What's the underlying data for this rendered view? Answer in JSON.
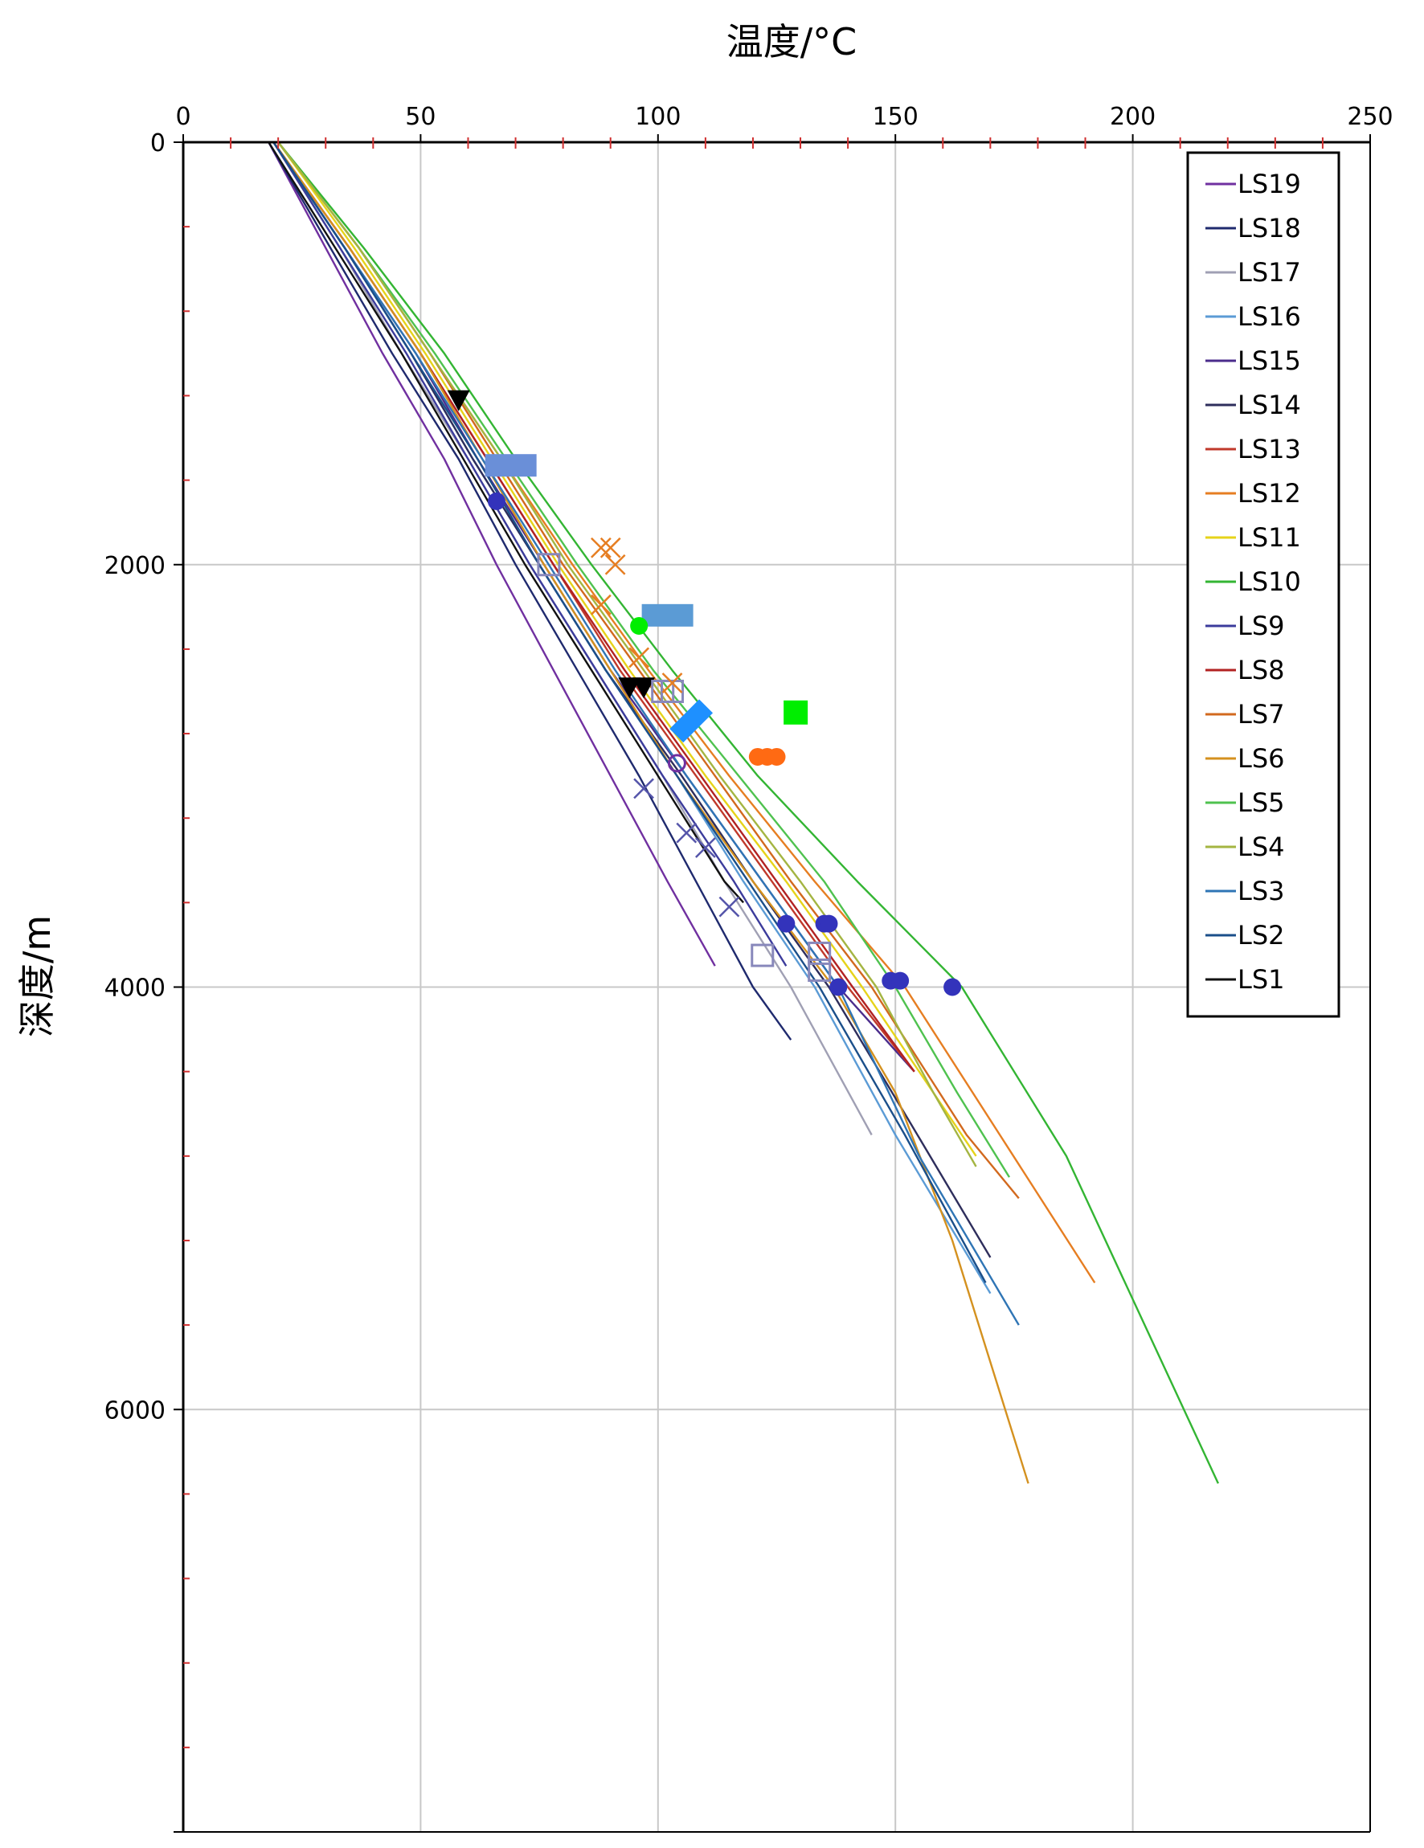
{
  "chart_data": {
    "type": "line",
    "title": "",
    "xlabel": "温度/°C",
    "ylabel": "深度/m",
    "xlim": [
      0,
      250
    ],
    "ylim": [
      0,
      8000
    ],
    "x_ticks": [
      "0",
      "50",
      "100",
      "150",
      "200",
      "250"
    ],
    "y_ticks": [
      "0",
      "2000",
      "4000",
      "6000"
    ],
    "grid": true,
    "legend_position": "top-right",
    "series": [
      {
        "name": "LS19",
        "color": "#7030a0",
        "points": [
          [
            18,
            0
          ],
          [
            30,
            500
          ],
          [
            42,
            1000
          ],
          [
            55,
            1500
          ],
          [
            66,
            2000
          ],
          [
            78,
            2500
          ],
          [
            90,
            3000
          ],
          [
            102,
            3500
          ],
          [
            112,
            3900
          ]
        ]
      },
      {
        "name": "LS18",
        "color": "#1f2a6e",
        "points": [
          [
            18,
            0
          ],
          [
            31,
            500
          ],
          [
            44,
            1000
          ],
          [
            58,
            1500
          ],
          [
            70,
            2000
          ],
          [
            83,
            2500
          ],
          [
            96,
            3000
          ],
          [
            108,
            3500
          ],
          [
            120,
            4000
          ],
          [
            128,
            4250
          ]
        ]
      },
      {
        "name": "LS17",
        "color": "#a0a0b4",
        "points": [
          [
            19,
            0
          ],
          [
            33,
            500
          ],
          [
            46,
            1000
          ],
          [
            60,
            1500
          ],
          [
            73,
            2000
          ],
          [
            87,
            2500
          ],
          [
            101,
            3000
          ],
          [
            114,
            3500
          ],
          [
            128,
            4000
          ],
          [
            145,
            4700
          ]
        ]
      },
      {
        "name": "LS16",
        "color": "#5b9bd5",
        "points": [
          [
            19,
            0
          ],
          [
            34,
            500
          ],
          [
            48,
            1000
          ],
          [
            61,
            1500
          ],
          [
            75,
            2000
          ],
          [
            89,
            2500
          ],
          [
            104,
            3000
          ],
          [
            118,
            3500
          ],
          [
            133,
            4000
          ],
          [
            150,
            4700
          ],
          [
            170,
            5450
          ]
        ]
      },
      {
        "name": "LS15",
        "color": "#4b2c8c",
        "points": [
          [
            19,
            0
          ],
          [
            34,
            500
          ],
          [
            49,
            1000
          ],
          [
            62,
            1500
          ],
          [
            76,
            2000
          ],
          [
            90,
            2500
          ],
          [
            106,
            3000
          ],
          [
            122,
            3500
          ],
          [
            138,
            4000
          ],
          [
            154,
            4400
          ]
        ]
      },
      {
        "name": "LS14",
        "color": "#2e2e5c",
        "points": [
          [
            19,
            0
          ],
          [
            34,
            500
          ],
          [
            48,
            1000
          ],
          [
            61,
            1500
          ],
          [
            75,
            2000
          ],
          [
            89,
            2500
          ],
          [
            105,
            3000
          ],
          [
            120,
            3500
          ],
          [
            136,
            4000
          ],
          [
            152,
            4600
          ],
          [
            170,
            5280
          ]
        ]
      },
      {
        "name": "LS13",
        "color": "#c0392b",
        "points": [
          [
            19,
            0
          ],
          [
            35,
            500
          ],
          [
            50,
            1000
          ],
          [
            64,
            1500
          ],
          [
            78,
            2000
          ],
          [
            92,
            2500
          ],
          [
            108,
            3000
          ],
          [
            124,
            3500
          ],
          [
            140,
            4000
          ],
          [
            154,
            4400
          ]
        ]
      },
      {
        "name": "LS12",
        "color": "#e67e22",
        "points": [
          [
            20,
            0
          ],
          [
            37,
            500
          ],
          [
            52,
            1000
          ],
          [
            67,
            1500
          ],
          [
            82,
            2000
          ],
          [
            98,
            2500
          ],
          [
            115,
            3000
          ],
          [
            133,
            3500
          ],
          [
            152,
            4000
          ],
          [
            172,
            4700
          ],
          [
            192,
            5400
          ]
        ]
      },
      {
        "name": "LS11",
        "color": "#e6d31a",
        "points": [
          [
            20,
            0
          ],
          [
            36,
            500
          ],
          [
            51,
            1000
          ],
          [
            65,
            1500
          ],
          [
            79,
            2000
          ],
          [
            94,
            2500
          ],
          [
            110,
            3000
          ],
          [
            127,
            3500
          ],
          [
            143,
            4000
          ],
          [
            158,
            4500
          ],
          [
            167,
            4800
          ]
        ]
      },
      {
        "name": "LS10",
        "color": "#33b533",
        "points": [
          [
            20,
            0
          ],
          [
            38,
            500
          ],
          [
            55,
            1000
          ],
          [
            70,
            1500
          ],
          [
            86,
            2000
          ],
          [
            103,
            2500
          ],
          [
            121,
            3000
          ],
          [
            142,
            3500
          ],
          [
            164,
            4000
          ],
          [
            186,
            4800
          ],
          [
            218,
            6350
          ]
        ]
      },
      {
        "name": "LS9",
        "color": "#3c3c9c",
        "points": [
          [
            19,
            0
          ],
          [
            33,
            500
          ],
          [
            47,
            1000
          ],
          [
            60,
            1500
          ],
          [
            73,
            2000
          ],
          [
            87,
            2500
          ],
          [
            101,
            3000
          ],
          [
            116,
            3500
          ],
          [
            127,
            3900
          ]
        ]
      },
      {
        "name": "LS8",
        "color": "#b22222",
        "points": [
          [
            19,
            0
          ],
          [
            35,
            500
          ],
          [
            50,
            1000
          ],
          [
            64,
            1500
          ],
          [
            78,
            2000
          ],
          [
            93,
            2500
          ],
          [
            109,
            3000
          ],
          [
            125,
            3500
          ],
          [
            141,
            4000
          ],
          [
            154,
            4400
          ]
        ]
      },
      {
        "name": "LS7",
        "color": "#d2691e",
        "points": [
          [
            20,
            0
          ],
          [
            37,
            500
          ],
          [
            52,
            1000
          ],
          [
            66,
            1500
          ],
          [
            80,
            2000
          ],
          [
            96,
            2500
          ],
          [
            112,
            3000
          ],
          [
            128,
            3500
          ],
          [
            145,
            4000
          ],
          [
            165,
            4700
          ],
          [
            176,
            5000
          ]
        ]
      },
      {
        "name": "LS6",
        "color": "#d4911f",
        "points": [
          [
            19,
            0
          ],
          [
            35,
            500
          ],
          [
            50,
            1000
          ],
          [
            63,
            1500
          ],
          [
            76,
            2000
          ],
          [
            90,
            2500
          ],
          [
            104,
            3000
          ],
          [
            120,
            3500
          ],
          [
            137,
            4000
          ],
          [
            150,
            4500
          ],
          [
            162,
            5200
          ],
          [
            178,
            6350
          ]
        ]
      },
      {
        "name": "LS5",
        "color": "#4fc24f",
        "points": [
          [
            20,
            0
          ],
          [
            37,
            500
          ],
          [
            53,
            1000
          ],
          [
            68,
            1500
          ],
          [
            83,
            2000
          ],
          [
            99,
            2500
          ],
          [
            117,
            3000
          ],
          [
            135,
            3500
          ],
          [
            150,
            4000
          ],
          [
            163,
            4500
          ],
          [
            174,
            4900
          ]
        ]
      },
      {
        "name": "LS4",
        "color": "#a4b542",
        "points": [
          [
            20,
            0
          ],
          [
            37,
            500
          ],
          [
            52,
            1000
          ],
          [
            67,
            1500
          ],
          [
            81,
            2000
          ],
          [
            97,
            2500
          ],
          [
            113,
            3000
          ],
          [
            130,
            3500
          ],
          [
            146,
            4000
          ],
          [
            158,
            4500
          ],
          [
            167,
            4850
          ]
        ]
      },
      {
        "name": "LS3",
        "color": "#2f75b5",
        "points": [
          [
            19,
            0
          ],
          [
            34,
            500
          ],
          [
            49,
            1000
          ],
          [
            63,
            1500
          ],
          [
            77,
            2000
          ],
          [
            91,
            2500
          ],
          [
            106,
            3000
          ],
          [
            122,
            3500
          ],
          [
            138,
            4000
          ],
          [
            155,
            4800
          ],
          [
            176,
            5600
          ]
        ]
      },
      {
        "name": "LS2",
        "color": "#1b4f8a",
        "points": [
          [
            19,
            0
          ],
          [
            34,
            500
          ],
          [
            48,
            1000
          ],
          [
            62,
            1500
          ],
          [
            75,
            2000
          ],
          [
            89,
            2500
          ],
          [
            104,
            3000
          ],
          [
            119,
            3500
          ],
          [
            134,
            4000
          ],
          [
            152,
            4700
          ],
          [
            169,
            5400
          ]
        ]
      },
      {
        "name": "LS1",
        "color": "#111111",
        "points": [
          [
            18,
            0
          ],
          [
            32,
            500
          ],
          [
            46,
            1000
          ],
          [
            59,
            1500
          ],
          [
            72,
            2000
          ],
          [
            86,
            2500
          ],
          [
            100,
            3000
          ],
          [
            114,
            3500
          ],
          [
            118,
            3600
          ]
        ]
      }
    ],
    "markers": [
      {
        "shape": "triangle-down",
        "color": "#000000",
        "points": [
          [
            58,
            1220
          ],
          [
            94,
            2580
          ],
          [
            97,
            2580
          ]
        ]
      },
      {
        "shape": "circle",
        "color": "#3333bb",
        "points": [
          [
            66,
            1700
          ],
          [
            127,
            3700
          ],
          [
            135,
            3700
          ],
          [
            136,
            3700
          ],
          [
            138,
            4000
          ],
          [
            149,
            3970
          ],
          [
            151,
            3970
          ],
          [
            162,
            4000
          ]
        ]
      },
      {
        "shape": "rect-wide",
        "color": "#6a8fd8",
        "points": [
          [
            69,
            1530
          ]
        ]
      },
      {
        "shape": "rect-wide",
        "color": "#5b9bd5",
        "points": [
          [
            102,
            2240
          ]
        ]
      },
      {
        "shape": "rect-tilted",
        "color": "#1e90ff",
        "points": [
          [
            107,
            2740
          ]
        ]
      },
      {
        "shape": "square",
        "color": "#00ee00",
        "points": [
          [
            129,
            2700
          ]
        ]
      },
      {
        "shape": "circle",
        "color": "#00ee00",
        "points": [
          [
            96,
            2290
          ]
        ]
      },
      {
        "shape": "circle",
        "color": "#ff6a13",
        "points": [
          [
            121,
            2910
          ],
          [
            123,
            2910
          ],
          [
            125,
            2910
          ]
        ]
      },
      {
        "shape": "square-open",
        "color": "#8888bb",
        "points": [
          [
            77,
            2000
          ],
          [
            122,
            3850
          ],
          [
            134,
            3840
          ],
          [
            134,
            3920
          ],
          [
            101,
            2600
          ],
          [
            103,
            2600
          ]
        ]
      },
      {
        "shape": "x",
        "color": "#5555aa",
        "points": [
          [
            97,
            3060
          ],
          [
            106,
            3270
          ],
          [
            110,
            3340
          ],
          [
            115,
            3620
          ]
        ]
      },
      {
        "shape": "x",
        "color": "#e67e22",
        "points": [
          [
            88,
            1920
          ],
          [
            90,
            1920
          ],
          [
            91,
            2000
          ],
          [
            88,
            2190
          ],
          [
            96,
            2440
          ],
          [
            103,
            2560
          ]
        ]
      },
      {
        "shape": "circle-open",
        "color": "#7030a0",
        "points": [
          [
            104,
            2940
          ]
        ]
      }
    ]
  }
}
